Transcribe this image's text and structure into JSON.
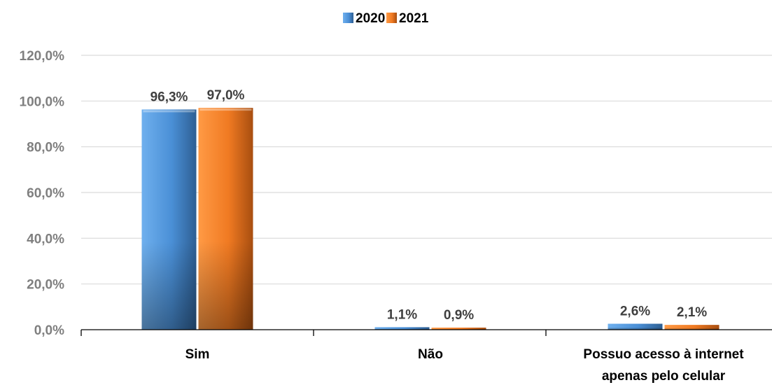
{
  "chart_data": {
    "type": "bar",
    "categories": [
      [
        "Sim"
      ],
      [
        "Não"
      ],
      [
        "Possuo acesso à internet",
        "apenas pelo celular"
      ]
    ],
    "series": [
      {
        "name": "2020",
        "values": [
          96.3,
          1.1,
          2.6
        ],
        "labels": [
          "96,3%",
          "1,1%",
          "2,6%"
        ],
        "color": "#4a8fd6",
        "color_light": "#6fb0ee",
        "color_dark": "#2e5f93"
      },
      {
        "name": "2021",
        "values": [
          97.0,
          0.9,
          2.1
        ],
        "labels": [
          "97,0%",
          "0,9%",
          "2,1%"
        ],
        "color": "#f07a22",
        "color_light": "#ff9a45",
        "color_dark": "#a84e10"
      }
    ],
    "yticks": [
      0,
      20,
      40,
      60,
      80,
      100,
      120
    ],
    "ytick_labels": [
      "0,0%",
      "20,0%",
      "40,0%",
      "60,0%",
      "80,0%",
      "100,0%",
      "120,0%"
    ],
    "ylim": [
      0,
      120
    ],
    "grid": true,
    "legend_position": "top-center"
  }
}
